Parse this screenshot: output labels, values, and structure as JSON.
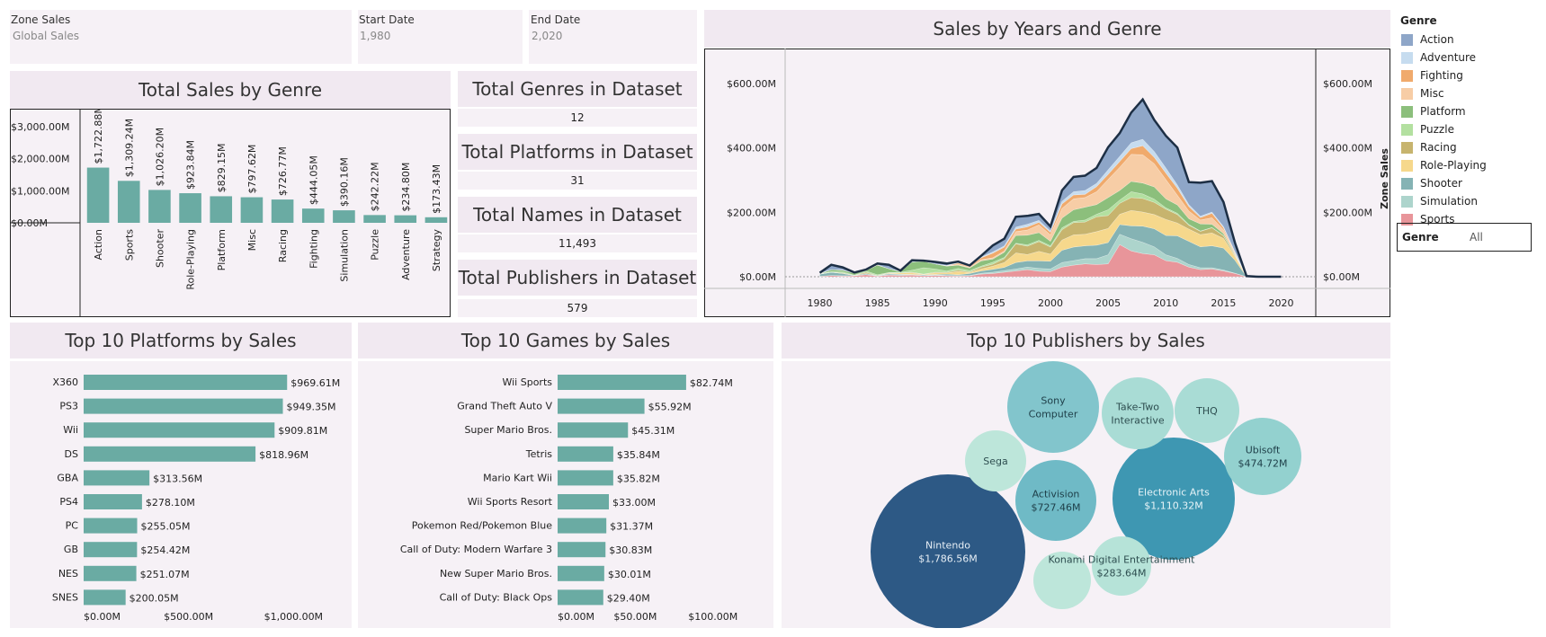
{
  "filters": {
    "zone": {
      "label": "Zone Sales",
      "value": "Global Sales"
    },
    "start": {
      "label": "Start Date",
      "value": "1,980"
    },
    "end": {
      "label": "End Date",
      "value": "2,020"
    }
  },
  "genre_filter": {
    "label": "Genre",
    "value": "All"
  },
  "kpis": [
    {
      "title": "Total Genres in Dataset",
      "value": "12"
    },
    {
      "title": "Total Platforms in Dataset",
      "value": "31"
    },
    {
      "title": "Total Names in Dataset",
      "value": "11,493"
    },
    {
      "title": "Total Publishers in Dataset",
      "value": "579"
    }
  ],
  "legend": {
    "title": "Genre",
    "items": [
      {
        "name": "Action",
        "color": "#8ea6c8"
      },
      {
        "name": "Adventure",
        "color": "#c6dcef"
      },
      {
        "name": "Fighting",
        "color": "#f0aa6c"
      },
      {
        "name": "Misc",
        "color": "#f7cda6"
      },
      {
        "name": "Platform",
        "color": "#8cbf7c"
      },
      {
        "name": "Puzzle",
        "color": "#b3e0a0"
      },
      {
        "name": "Racing",
        "color": "#c7b46e"
      },
      {
        "name": "Role-Playing",
        "color": "#f6d88c"
      },
      {
        "name": "Shooter",
        "color": "#85b3b4"
      },
      {
        "name": "Simulation",
        "color": "#add4cc"
      },
      {
        "name": "Sports",
        "color": "#e8959a"
      }
    ]
  },
  "chart_data": [
    {
      "type": "bar",
      "title": "Total Sales by Genre",
      "categories": [
        "Action",
        "Sports",
        "Shooter",
        "Role-Playing",
        "Platform",
        "Misc",
        "Racing",
        "Fighting",
        "Simulation",
        "Puzzle",
        "Adventure",
        "Strategy"
      ],
      "values": [
        1722.88,
        1309.24,
        1026.2,
        923.84,
        829.15,
        797.62,
        726.77,
        444.05,
        390.16,
        242.22,
        234.8,
        173.43
      ],
      "value_labels": [
        "$1,722.88M",
        "$1,309.24M",
        "$1,026.20M",
        "$923.84M",
        "$829.15M",
        "$797.62M",
        "$726.77M",
        "$444.05M",
        "$390.16M",
        "$242.22M",
        "$234.80M",
        "$173.43M"
      ],
      "ylim": [
        0,
        3000
      ],
      "yticks": [
        {
          "v": 0,
          "label": "$0.00M"
        },
        {
          "v": 1000,
          "label": "$1,000.00M"
        },
        {
          "v": 2000,
          "label": "$2,000.00M"
        },
        {
          "v": 3000,
          "label": "$3,000.00M"
        }
      ],
      "color": "#6aaba3"
    },
    {
      "type": "area",
      "title": "Sales by Years and Genre",
      "ylabel_right": "Zone Sales",
      "xlim": [
        1977,
        2023
      ],
      "ylim": [
        0,
        720
      ],
      "xticks": [
        1980,
        1985,
        1990,
        1995,
        2000,
        2005,
        2010,
        2015,
        2020
      ],
      "yticks": [
        {
          "v": 0,
          "label": "$0.00M"
        },
        {
          "v": 200,
          "label": "$200.00M"
        },
        {
          "v": 400,
          "label": "$400.00M"
        },
        {
          "v": 600,
          "label": "$600.00M"
        }
      ],
      "x": [
        1980,
        1981,
        1982,
        1983,
        1984,
        1985,
        1986,
        1987,
        1988,
        1989,
        1990,
        1991,
        1992,
        1993,
        1994,
        1995,
        1996,
        1997,
        1998,
        1999,
        2000,
        2001,
        2002,
        2003,
        2004,
        2005,
        2006,
        2007,
        2008,
        2009,
        2010,
        2011,
        2012,
        2013,
        2014,
        2015,
        2016,
        2017,
        2018,
        2019,
        2020
      ],
      "series": [
        {
          "name": "Sports",
          "values": [
            1,
            4,
            2,
            3,
            6,
            2,
            5,
            4,
            5,
            3,
            4,
            3,
            2,
            3,
            8,
            10,
            14,
            18,
            22,
            17,
            16,
            30,
            36,
            40,
            38,
            40,
            100,
            80,
            72,
            68,
            50,
            45,
            30,
            22,
            24,
            18,
            10,
            0,
            0,
            0,
            0
          ]
        },
        {
          "name": "Simulation",
          "values": [
            0,
            0,
            1,
            0,
            1,
            0,
            1,
            2,
            1,
            1,
            2,
            1,
            2,
            1,
            3,
            4,
            5,
            6,
            8,
            9,
            8,
            14,
            14,
            16,
            18,
            28,
            32,
            38,
            35,
            25,
            18,
            12,
            8,
            6,
            4,
            3,
            1,
            0,
            0,
            0,
            0
          ]
        },
        {
          "name": "Shooter",
          "values": [
            7,
            10,
            7,
            1,
            3,
            1,
            3,
            2,
            1,
            2,
            1,
            4,
            2,
            6,
            7,
            9,
            10,
            20,
            19,
            23,
            24,
            38,
            42,
            40,
            42,
            38,
            30,
            40,
            50,
            56,
            60,
            70,
            72,
            65,
            68,
            68,
            40,
            0,
            0,
            0,
            0
          ]
        },
        {
          "name": "Role-Playing",
          "values": [
            0,
            0,
            0,
            0,
            0,
            0,
            1,
            4,
            5,
            2,
            5,
            4,
            10,
            3,
            6,
            10,
            15,
            30,
            20,
            30,
            22,
            32,
            38,
            36,
            42,
            44,
            32,
            48,
            44,
            44,
            50,
            40,
            38,
            38,
            40,
            30,
            12,
            0,
            0,
            0,
            0
          ]
        },
        {
          "name": "Racing",
          "values": [
            0,
            0,
            2,
            0,
            4,
            0,
            2,
            0,
            2,
            0,
            2,
            2,
            4,
            2,
            6,
            6,
            12,
            28,
            26,
            30,
            22,
            32,
            38,
            38,
            46,
            40,
            34,
            40,
            42,
            38,
            32,
            26,
            12,
            10,
            16,
            8,
            3,
            0,
            0,
            0,
            0
          ]
        },
        {
          "name": "Puzzle",
          "values": [
            1,
            2,
            3,
            1,
            4,
            3,
            1,
            2,
            6,
            20,
            10,
            4,
            6,
            4,
            3,
            6,
            4,
            2,
            4,
            4,
            4,
            6,
            4,
            6,
            8,
            18,
            10,
            18,
            14,
            10,
            4,
            4,
            2,
            1,
            1,
            1,
            0,
            0,
            0,
            0,
            0
          ]
        },
        {
          "name": "Platform",
          "values": [
            0,
            6,
            5,
            6,
            1,
            30,
            12,
            2,
            26,
            20,
            16,
            15,
            10,
            8,
            16,
            10,
            16,
            24,
            30,
            24,
            14,
            30,
            36,
            40,
            30,
            38,
            30,
            32,
            34,
            38,
            28,
            26,
            18,
            22,
            10,
            6,
            3,
            0,
            0,
            0,
            0
          ]
        },
        {
          "name": "Misc",
          "values": [
            1,
            0,
            1,
            0,
            1,
            0,
            0,
            0,
            0,
            0,
            0,
            1,
            2,
            3,
            4,
            4,
            4,
            12,
            16,
            24,
            20,
            30,
            34,
            30,
            40,
            56,
            72,
            84,
            88,
            72,
            60,
            30,
            24,
            12,
            20,
            12,
            4,
            0,
            0,
            0,
            0
          ]
        },
        {
          "name": "Fighting",
          "values": [
            1,
            0,
            0,
            0,
            0,
            1,
            0,
            0,
            0,
            0,
            0,
            0,
            4,
            2,
            6,
            14,
            12,
            8,
            10,
            8,
            8,
            14,
            12,
            10,
            16,
            16,
            18,
            18,
            28,
            20,
            20,
            22,
            14,
            8,
            14,
            6,
            2,
            0,
            0,
            0,
            0
          ]
        },
        {
          "name": "Adventure",
          "values": [
            0,
            0,
            0,
            0,
            0,
            0,
            0,
            1,
            0,
            0,
            0,
            1,
            2,
            1,
            2,
            4,
            4,
            6,
            8,
            6,
            4,
            8,
            10,
            12,
            10,
            14,
            16,
            18,
            20,
            18,
            16,
            10,
            6,
            4,
            4,
            4,
            2,
            0,
            0,
            0,
            0
          ]
        },
        {
          "name": "Action",
          "values": [
            1,
            15,
            8,
            2,
            2,
            4,
            12,
            2,
            5,
            2,
            6,
            6,
            3,
            2,
            4,
            20,
            22,
            32,
            26,
            20,
            14,
            34,
            46,
            46,
            48,
            70,
            72,
            94,
            124,
            98,
            100,
            116,
            70,
            104,
            96,
            76,
            28,
            2,
            0,
            0,
            0
          ]
        }
      ]
    },
    {
      "type": "bar",
      "orientation": "horizontal",
      "title": "Top 10 Platforms by Sales",
      "categories": [
        "X360",
        "PS3",
        "Wii",
        "DS",
        "GBA",
        "PS4",
        "PC",
        "GB",
        "NES",
        "SNES"
      ],
      "values": [
        969.61,
        949.35,
        909.81,
        818.96,
        313.56,
        278.1,
        255.05,
        254.42,
        251.07,
        200.05
      ],
      "value_labels": [
        "$969.61M",
        "$949.35M",
        "$909.81M",
        "$818.96M",
        "$313.56M",
        "$278.10M",
        "$255.05M",
        "$254.42M",
        "$251.07M",
        "$200.05M"
      ],
      "xlim": [
        0,
        1200
      ],
      "xticks": [
        {
          "v": 0,
          "label": "$0.00M"
        },
        {
          "v": 500,
          "label": "$500.00M"
        },
        {
          "v": 1000,
          "label": "$1,000.00M"
        }
      ],
      "color": "#6aaba3"
    },
    {
      "type": "bar",
      "orientation": "horizontal",
      "title": "Top 10 Games by Sales",
      "categories": [
        "Wii Sports",
        "Grand Theft Auto V",
        "Super Mario Bros.",
        "Tetris",
        "Mario Kart Wii",
        "Wii Sports Resort",
        "Pokemon Red/Pokemon Blue",
        "Call of Duty: Modern Warfare 3",
        "New Super Mario Bros.",
        "Call of Duty: Black Ops"
      ],
      "values": [
        82.74,
        55.92,
        45.31,
        35.84,
        35.82,
        33.0,
        31.37,
        30.83,
        30.01,
        29.4
      ],
      "value_labels": [
        "$82.74M",
        "$55.92M",
        "$45.31M",
        "$35.84M",
        "$35.82M",
        "$33.00M",
        "$31.37M",
        "$30.83M",
        "$30.01M",
        "$29.40M"
      ],
      "xlim": [
        0,
        110
      ],
      "xticks": [
        {
          "v": 0,
          "label": "$0.00M"
        },
        {
          "v": 50,
          "label": "$50.00M"
        },
        {
          "v": 100,
          "label": "$100.00M"
        }
      ],
      "color": "#6aaba3"
    },
    {
      "type": "bubble",
      "title": "Top 10 Publishers by Sales",
      "items": [
        {
          "name": "Nintendo",
          "label": "$1,786.56M",
          "value": 1786.56,
          "color": "#2d5985",
          "text": "#e6eef5"
        },
        {
          "name": "Electronic Arts",
          "label": "$1,110.32M",
          "value": 1110.32,
          "color": "#3e97b2",
          "text": "#e6f3f7"
        },
        {
          "name": "Activision",
          "label": "$727.46M",
          "value": 727.46,
          "color": "#6fbac6",
          "text": "#1e3e48"
        },
        {
          "name": "Sony Computer",
          "label": "",
          "value": 607,
          "color": "#82c5cc",
          "text": "#1e3e48"
        },
        {
          "name": "Ubisoft",
          "label": "$474.72M",
          "value": 474.72,
          "color": "#93d1cf",
          "text": "#1e3e48"
        },
        {
          "name": "Take-Two Interactive",
          "label": "",
          "value": 400,
          "color": "#a9dcd5",
          "text": "#2e4e50"
        },
        {
          "name": "THQ",
          "label": "",
          "value": 340,
          "color": "#a9dcd5",
          "text": "#2e4e50"
        },
        {
          "name": "Konami Digital Entertainment",
          "label": "$283.64M",
          "value": 283.64,
          "color": "#b6e3d8",
          "text": "#2e4e50"
        },
        {
          "name": "Sega",
          "label": "",
          "value": 270,
          "color": "#bde6da",
          "text": "#2e4e50"
        },
        {
          "name": "",
          "label": "",
          "value": 250,
          "color": "#bde6da",
          "text": "#2e4e50"
        }
      ]
    }
  ]
}
